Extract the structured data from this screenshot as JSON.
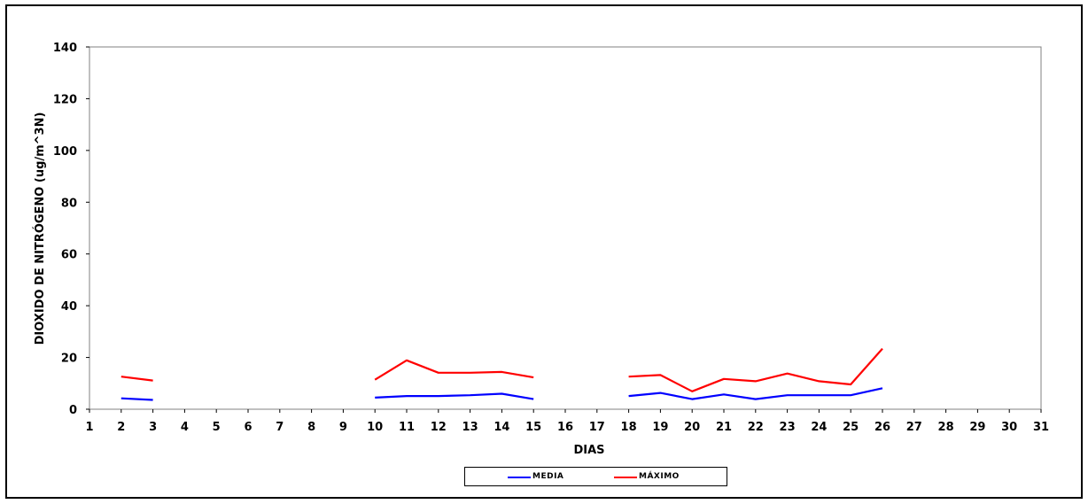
{
  "chart_data": {
    "type": "line",
    "title": "",
    "xlabel": "DIAS",
    "ylabel": "DIOXIDO DE NITRÓGENO (ug/m^3N)",
    "x": [
      1,
      2,
      3,
      4,
      5,
      6,
      7,
      8,
      9,
      10,
      11,
      12,
      13,
      14,
      15,
      16,
      17,
      18,
      19,
      20,
      21,
      22,
      23,
      24,
      25,
      26,
      27,
      28,
      29,
      30,
      31
    ],
    "ylim": [
      0,
      140
    ],
    "yticks": [
      0,
      20,
      40,
      60,
      80,
      100,
      120,
      140
    ],
    "grid": false,
    "legend_position": "bottom",
    "series": [
      {
        "name": "MEDIA",
        "color": "#0000ff",
        "values": [
          null,
          4.2,
          3.6,
          null,
          null,
          null,
          null,
          null,
          null,
          4.5,
          5.1,
          5.1,
          5.4,
          6.0,
          3.9,
          null,
          null,
          5.1,
          6.3,
          3.9,
          5.7,
          3.9,
          5.4,
          5.4,
          5.4,
          8.1,
          null,
          null,
          null,
          null,
          null
        ]
      },
      {
        "name": "MÁXIMO",
        "color": "#ff0000",
        "values": [
          null,
          12.6,
          11.1,
          null,
          null,
          null,
          null,
          null,
          null,
          11.4,
          18.9,
          14.1,
          14.1,
          14.4,
          12.3,
          null,
          null,
          12.6,
          13.2,
          6.9,
          11.7,
          10.8,
          13.8,
          10.8,
          9.6,
          23.4,
          null,
          null,
          null,
          null,
          null
        ]
      }
    ]
  }
}
